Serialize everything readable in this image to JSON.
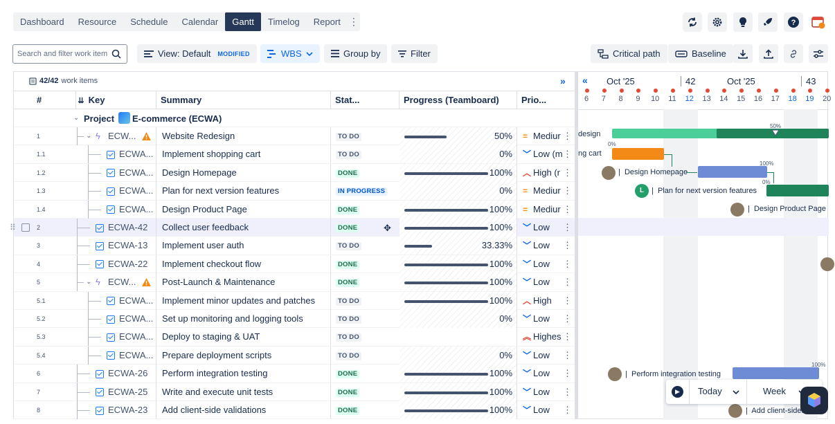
{
  "nav": {
    "tabs": [
      {
        "label": "Dashboard",
        "active": false
      },
      {
        "label": "Resource",
        "active": false
      },
      {
        "label": "Schedule",
        "active": false
      },
      {
        "label": "Calendar",
        "active": false
      },
      {
        "label": "Gantt",
        "active": true
      },
      {
        "label": "Timelog",
        "active": false
      },
      {
        "label": "Report",
        "active": false
      }
    ],
    "more": "⋮",
    "icons": [
      "refresh-icon",
      "settings-gear-icon",
      "lightbulb-icon",
      "rocket-icon",
      "help-icon",
      "calendar-icon"
    ]
  },
  "toolbar": {
    "search_placeholder": "Search and filter work item",
    "view_label": "View: Default",
    "view_badge": "MODIFIED",
    "wbs_label": "WBS",
    "groupby_label": "Group by",
    "filter_label": "Filter",
    "critical_path_label": "Critical path",
    "baseline_label": "Baseline"
  },
  "grid": {
    "count_label": "42/42",
    "count_suffix": "work items",
    "columns": [
      "#",
      "Key",
      "Summary",
      "Stat...",
      "Progress (Teamboard)",
      "Prio..."
    ],
    "project_label": "Project",
    "project_name": "E-commerce (ECWA)",
    "rows": [
      {
        "num": "1",
        "key": "ECW...",
        "summary": "Website Redesign",
        "status": "TO DO",
        "progress": 50,
        "progress_text": "50%",
        "priority": "Medium",
        "priority_text": "Mediur",
        "epic": true,
        "level": 1
      },
      {
        "num": "1.1",
        "key": "ECWA...",
        "summary": "Implement shopping cart",
        "status": "TO DO",
        "progress": 0,
        "progress_text": "0%",
        "priority": "Low",
        "priority_text": "Low (m",
        "epic": false,
        "level": 2
      },
      {
        "num": "1.2",
        "key": "ECWA...",
        "summary": "Design Homepage",
        "status": "DONE",
        "progress": 100,
        "progress_text": "100%",
        "priority": "High",
        "priority_text": "High (r",
        "epic": false,
        "level": 2
      },
      {
        "num": "1.3",
        "key": "ECWA...",
        "summary": "Plan for next version features",
        "status": "IN PROGRESS",
        "progress": 0,
        "progress_text": "0%",
        "priority": "Medium",
        "priority_text": "Mediur",
        "epic": false,
        "level": 2
      },
      {
        "num": "1.4",
        "key": "ECWA...",
        "summary": "Design Product Page",
        "status": "DONE",
        "progress": 100,
        "progress_text": "100%",
        "priority": "Medium",
        "priority_text": "Mediur",
        "epic": false,
        "level": 2
      },
      {
        "num": "2",
        "key": "ECWA-42",
        "summary": "Collect user feedback",
        "status": "DONE",
        "progress": 100,
        "progress_text": "100%",
        "priority": "Low",
        "priority_text": "Low",
        "epic": false,
        "level": 1
      },
      {
        "num": "3",
        "key": "ECWA-13",
        "summary": "Implement user auth",
        "status": "TO DO",
        "progress": 33.33,
        "progress_text": "33.33%",
        "priority": "Low",
        "priority_text": "Low",
        "epic": false,
        "level": 1
      },
      {
        "num": "4",
        "key": "ECWA-22",
        "summary": "Implement checkout flow",
        "status": "DONE",
        "progress": 100,
        "progress_text": "100%",
        "priority": "Low",
        "priority_text": "Low",
        "epic": false,
        "level": 1
      },
      {
        "num": "5",
        "key": "ECW...",
        "summary": "Post-Launch & Maintenance",
        "status": "DONE",
        "progress": 100,
        "progress_text": "100%",
        "priority": "Low",
        "priority_text": "Low",
        "epic": true,
        "level": 1
      },
      {
        "num": "5.1",
        "key": "ECWA...",
        "summary": "Implement minor updates and patches",
        "status": "TO DO",
        "progress": 100,
        "progress_text": "100%",
        "priority": "High",
        "priority_text": "High",
        "epic": false,
        "level": 2
      },
      {
        "num": "5.2",
        "key": "ECWA...",
        "summary": "Set up monitoring and logging tools",
        "status": "TO DO",
        "progress": 0,
        "progress_text": "0%",
        "priority": "Low",
        "priority_text": "Low",
        "epic": false,
        "level": 2
      },
      {
        "num": "5.3",
        "key": "ECWA...",
        "summary": "Deploy to staging & UAT",
        "status": "TO DO",
        "progress": null,
        "progress_text": "",
        "priority": "Highest",
        "priority_text": "Highes",
        "epic": false,
        "level": 2
      },
      {
        "num": "5.4",
        "key": "ECWA...",
        "summary": "Prepare deployment scripts",
        "status": "TO DO",
        "progress": 0,
        "progress_text": "0%",
        "priority": "Low",
        "priority_text": "Low",
        "epic": false,
        "level": 2
      },
      {
        "num": "6",
        "key": "ECWA-26",
        "summary": "Perform integration testing",
        "status": "DONE",
        "progress": 100,
        "progress_text": "100%",
        "priority": "Low",
        "priority_text": "Low",
        "epic": false,
        "level": 1
      },
      {
        "num": "7",
        "key": "ECWA-25",
        "summary": "Write and execute unit tests",
        "status": "DONE",
        "progress": 100,
        "progress_text": "100%",
        "priority": "Low",
        "priority_text": "Low",
        "epic": false,
        "level": 1
      },
      {
        "num": "8",
        "key": "ECWA-23",
        "summary": "Add client-side validations",
        "status": "DONE",
        "progress": 100,
        "progress_text": "100%",
        "priority": "Low",
        "priority_text": "Low",
        "epic": false,
        "level": 1
      }
    ]
  },
  "gantt": {
    "nav_prev": "«",
    "expand": "»",
    "months": [
      {
        "label": "Oct '25",
        "week": "42"
      },
      {
        "label": "Oct '25",
        "week": "43"
      }
    ],
    "days": [
      "6",
      "7",
      "8",
      "9",
      "10",
      "11",
      "12",
      "13",
      "14",
      "15",
      "16",
      "17",
      "18",
      "19",
      "20"
    ],
    "highlight_days": [
      "12",
      "18",
      "19"
    ],
    "labels": {
      "r1": "design",
      "r2": "ng cart",
      "r3": "Design Homepage",
      "r4": "Plan for next version features",
      "r5": "Design Product Page",
      "r14": "Perform integration testing",
      "r16": "Add client-side..."
    },
    "avatar_letter": "L",
    "pct": {
      "r1": "50%",
      "r2": "0%",
      "r3": "100%",
      "r4": "0%",
      "r14": "100%"
    },
    "colors": {
      "green": "#22a06b",
      "green_dark": "#1f845a",
      "orange": "#f38a18",
      "blue": "#6e8cd5",
      "navy": "#1d3b8a"
    }
  },
  "footer": {
    "today_label": "Today",
    "week_label": "Week"
  }
}
